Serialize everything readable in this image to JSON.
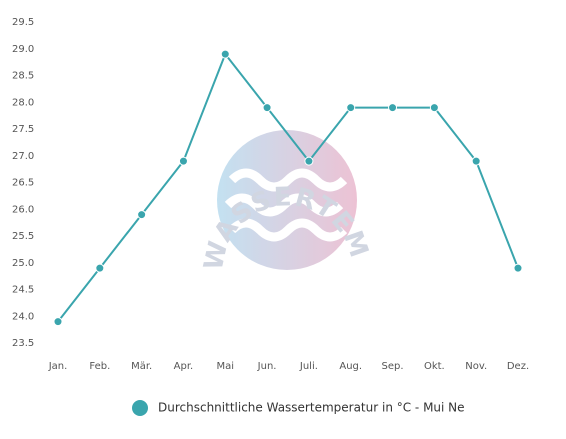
{
  "chart_data": {
    "type": "line",
    "watermark": "WASSERTEMPERATUR.ORG",
    "categories": [
      "Jan.",
      "Feb.",
      "Mär.",
      "Apr.",
      "Mai",
      "Jun.",
      "Juli.",
      "Aug.",
      "Sep.",
      "Okt.",
      "Nov.",
      "Dez."
    ],
    "series": [
      {
        "name": "Durchschnittliche Wassertemperatur in °C - Mui Ne",
        "color": "#3aa5ad",
        "values": [
          23.9,
          24.9,
          25.9,
          26.9,
          28.9,
          27.9,
          26.9,
          27.9,
          27.9,
          27.9,
          26.9,
          24.9
        ]
      }
    ],
    "ylim": [
      23.5,
      29.5
    ],
    "yticks": [
      23.5,
      {
        "value": 24,
        "label": "24.0"
      },
      24.5,
      {
        "value": 25,
        "label": "25.0"
      },
      25.5,
      {
        "value": 26,
        "label": "26.0"
      },
      26.5,
      {
        "value": 27,
        "label": "27.0"
      },
      27.5,
      {
        "value": 28,
        "label": "28.0"
      },
      28.5,
      {
        "value": 29,
        "label": "29.0"
      },
      29.5
    ],
    "grid": false,
    "legend": "bottom"
  }
}
